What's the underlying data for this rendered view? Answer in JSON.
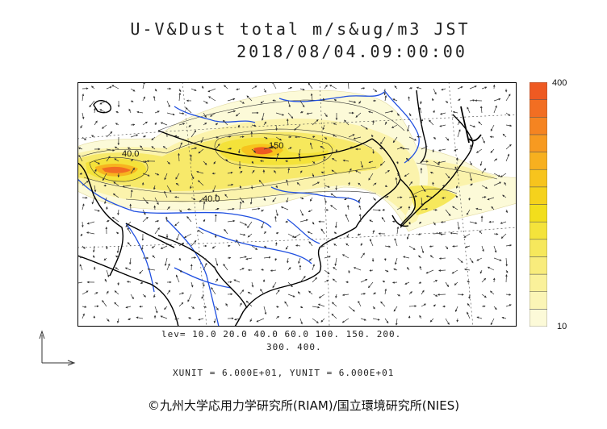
{
  "title": {
    "line1": "U-V&Dust total m/s&ug/m3 JST",
    "line2": "2018/08/04.09:00:00"
  },
  "colorbar": {
    "max_label": "400",
    "min_label": "10",
    "colors": [
      "#fcfad8",
      "#fbf5b6",
      "#faf19a",
      "#f8ec7c",
      "#f6e85c",
      "#f4e33b",
      "#f2de1c",
      "#f5d21c",
      "#f7c41d",
      "#f7b01f",
      "#f79a20",
      "#f58421",
      "#f26e22",
      "#ee5a22"
    ]
  },
  "contour_labels": [
    "40.0",
    "150",
    "40.0"
  ],
  "levels": {
    "line1": "lev= 10.0 20.0 40.0 60.0 100. 150. 200.",
    "line2": "300. 400."
  },
  "units_text": "XUNIT = 6.000E+01, YUNIT = 6.000E+01",
  "copyright": "©九州大学応用力学研究所(RIAM)/国立環境研究所(NIES)",
  "palette": {
    "land_line": "#000000",
    "river": "#1f4fe0",
    "frame": "#000000"
  }
}
